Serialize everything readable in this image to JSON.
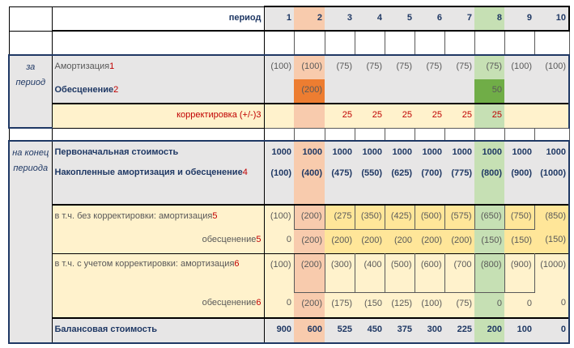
{
  "header": {
    "label": "период",
    "periods": [
      "1",
      "2",
      "3",
      "4",
      "5",
      "6",
      "7",
      "8",
      "9",
      "10"
    ]
  },
  "side": {
    "for_period": "за период",
    "end_period": "на конец периода"
  },
  "rows": [
    {
      "label": "Амортизация",
      "note": "1",
      "values": [
        "(100)",
        "(100)",
        "(75)",
        "(75)",
        "(75)",
        "(75)",
        "(75)",
        "(75)",
        "(100)",
        "(100)"
      ]
    },
    {
      "label": "Обесценение",
      "note": "2",
      "values": [
        "",
        "(200)",
        "",
        "",
        "",
        "",
        "",
        "50",
        "",
        ""
      ]
    },
    {
      "label": "корректировка (+/-)",
      "note": "3",
      "values": [
        "",
        "",
        "25",
        "25",
        "25",
        "25",
        "25",
        "25",
        "",
        ""
      ]
    },
    {
      "label": "Первоначальная стоимость",
      "note": "",
      "values": [
        "1000",
        "1000",
        "1000",
        "1000",
        "1000",
        "1000",
        "1000",
        "1000",
        "1000",
        "1000"
      ]
    },
    {
      "label": "Накопленные амортизация и обесценение",
      "note": "4",
      "values": [
        "(100)",
        "(400)",
        "(475)",
        "(550)",
        "(625)",
        "(700)",
        "(775)",
        "(800)",
        "(900)",
        "(1000)"
      ]
    },
    {
      "label": "в т.ч. без корректировки: амортизация",
      "note": "5",
      "values": [
        "(100)",
        "(200)",
        "(275",
        "(350)",
        "(425)",
        "(500)",
        "(575)",
        "(650)",
        "(750)",
        "(850)"
      ]
    },
    {
      "label": "обесценение",
      "note": "5",
      "values": [
        "0",
        "(200)",
        "(200)",
        "(200)",
        "(200",
        "(200)",
        "(200)",
        "(150)",
        "(150)",
        "(150)"
      ]
    },
    {
      "label": "в т.ч. с учетом корректировки: амортизация",
      "note": "6",
      "values": [
        "(100)",
        "(200)",
        "(300)",
        "(400",
        "(500)",
        "(600)",
        "(700",
        "(800)",
        "(900)",
        "(1000)"
      ]
    },
    {
      "label": "обесценение",
      "note": "6",
      "values": [
        "0",
        "(200)",
        "(175)",
        "(150",
        "(125)",
        "(100)",
        "(75)",
        "0",
        "0",
        "0"
      ]
    },
    {
      "label": "Балансовая стоимость",
      "note": "",
      "values": [
        "900",
        "600",
        "525",
        "450",
        "375",
        "300",
        "225",
        "200",
        "100",
        "0"
      ]
    }
  ],
  "colors": {
    "gray": "#e7e6e6",
    "cream": "#fff2cc",
    "orange": "#ed7d31",
    "green": "#70ad47",
    "navy": "#1f3864",
    "red": "#c00000"
  }
}
